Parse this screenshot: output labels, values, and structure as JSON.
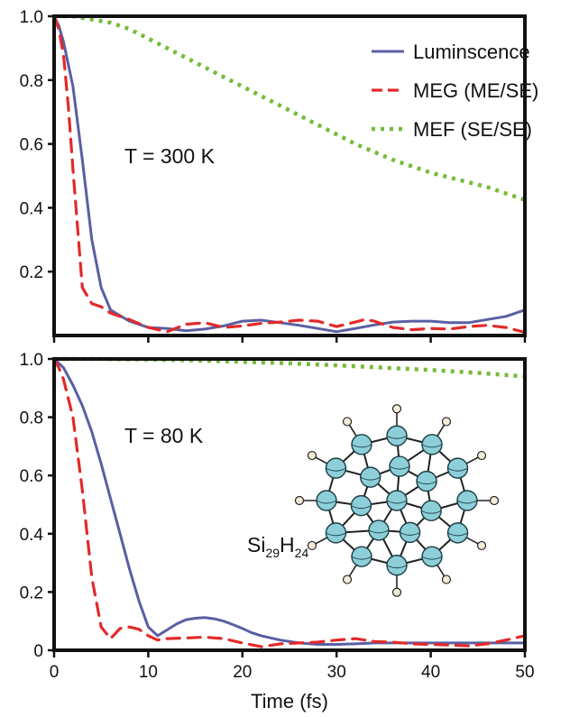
{
  "chart_data": [
    {
      "type": "line",
      "panel": "top",
      "annotation": "T = 300 K",
      "xlabel": "",
      "ylabel": "",
      "xlim": [
        0,
        50
      ],
      "ylim": [
        0,
        1.0
      ],
      "yticks": [
        "1.0",
        "0.8",
        "0.6",
        "0.4",
        "0.2"
      ],
      "ytick_values": [
        1.0,
        0.8,
        0.6,
        0.4,
        0.2
      ],
      "xtick_values": [
        0,
        10,
        20,
        30,
        40,
        50
      ],
      "legend_position": "top-right",
      "series": [
        {
          "name": "Luminscence",
          "color": "#5a5fa3",
          "style": "solid",
          "x": [
            0,
            0.5,
            1,
            2,
            3,
            4,
            5,
            6,
            8,
            10,
            12,
            14,
            16,
            18,
            20,
            22,
            24,
            26,
            28,
            30,
            32,
            34,
            36,
            38,
            40,
            42,
            44,
            46,
            48,
            50
          ],
          "y": [
            1.0,
            0.97,
            0.92,
            0.78,
            0.55,
            0.3,
            0.15,
            0.08,
            0.045,
            0.025,
            0.022,
            0.015,
            0.02,
            0.03,
            0.045,
            0.048,
            0.04,
            0.032,
            0.022,
            0.012,
            0.022,
            0.033,
            0.042,
            0.045,
            0.045,
            0.04,
            0.04,
            0.05,
            0.06,
            0.08
          ]
        },
        {
          "name": "MEG (ME/SE)",
          "color": "#e22a2a",
          "style": "dashed",
          "x": [
            0,
            0.5,
            1,
            1.5,
            2,
            3,
            4,
            5,
            6,
            8,
            10,
            12,
            14,
            16,
            18,
            20,
            22,
            24,
            26,
            28,
            30,
            32,
            33,
            34,
            36,
            38,
            40,
            42,
            44,
            46,
            48,
            50
          ],
          "y": [
            1.0,
            0.96,
            0.88,
            0.72,
            0.52,
            0.15,
            0.1,
            0.09,
            0.07,
            0.05,
            0.025,
            0.012,
            0.035,
            0.04,
            0.025,
            0.03,
            0.038,
            0.042,
            0.048,
            0.045,
            0.028,
            0.042,
            0.05,
            0.045,
            0.025,
            0.018,
            0.022,
            0.02,
            0.028,
            0.032,
            0.025,
            0.01
          ]
        },
        {
          "name": "MEF (SE/SE)",
          "color": "#77bb3a",
          "style": "dotted",
          "x": [
            0,
            2,
            4,
            6,
            8,
            10,
            12,
            14,
            16,
            18,
            20,
            22,
            24,
            26,
            28,
            30,
            32,
            34,
            36,
            38,
            40,
            42,
            44,
            46,
            48,
            50
          ],
          "y": [
            1.0,
            1.0,
            0.99,
            0.98,
            0.96,
            0.93,
            0.9,
            0.87,
            0.84,
            0.81,
            0.78,
            0.75,
            0.72,
            0.69,
            0.66,
            0.63,
            0.6,
            0.575,
            0.55,
            0.53,
            0.51,
            0.495,
            0.48,
            0.465,
            0.445,
            0.425
          ]
        }
      ]
    },
    {
      "type": "line",
      "panel": "bottom",
      "annotation": "T = 80 K",
      "molecule_label": "Si",
      "molecule_sub1": "29",
      "molecule_mid": "H",
      "molecule_sub2": "24",
      "xlabel": "Time (fs)",
      "ylabel": "",
      "xlim": [
        0,
        50
      ],
      "ylim": [
        0,
        1.0
      ],
      "yticks": [
        "1.0",
        "0.8",
        "0.6",
        "0.4",
        "0.2",
        "0"
      ],
      "ytick_values": [
        1.0,
        0.8,
        0.6,
        0.4,
        0.2,
        0
      ],
      "xticks": [
        "0",
        "10",
        "20",
        "30",
        "40",
        "50"
      ],
      "xtick_values": [
        0,
        10,
        20,
        30,
        40,
        50
      ],
      "series": [
        {
          "name": "Luminscence",
          "color": "#5a5fa3",
          "style": "solid",
          "x": [
            0,
            1,
            2,
            3,
            4,
            5,
            6,
            7,
            8,
            9,
            10,
            11,
            12,
            13,
            14,
            15,
            16,
            17,
            18,
            19,
            20,
            21,
            22,
            24,
            26,
            28,
            30,
            32,
            34,
            36,
            38,
            40,
            42,
            44,
            46,
            48,
            50
          ],
          "y": [
            1.0,
            0.97,
            0.91,
            0.84,
            0.75,
            0.64,
            0.52,
            0.4,
            0.28,
            0.17,
            0.08,
            0.05,
            0.07,
            0.09,
            0.105,
            0.11,
            0.112,
            0.108,
            0.1,
            0.088,
            0.075,
            0.06,
            0.05,
            0.035,
            0.025,
            0.02,
            0.02,
            0.022,
            0.025,
            0.025,
            0.025,
            0.025,
            0.025,
            0.025,
            0.025,
            0.025,
            0.025
          ]
        },
        {
          "name": "MEG (ME/SE)",
          "color": "#e22a2a",
          "style": "dashed",
          "x": [
            0,
            0.5,
            1,
            2,
            3,
            4,
            5,
            6,
            7,
            8,
            9,
            10,
            11,
            12,
            14,
            16,
            18,
            20,
            22,
            24,
            26,
            28,
            30,
            32,
            34,
            36,
            38,
            40,
            42,
            44,
            46,
            48,
            50
          ],
          "y": [
            1.0,
            0.97,
            0.93,
            0.8,
            0.55,
            0.25,
            0.08,
            0.04,
            0.075,
            0.08,
            0.072,
            0.05,
            0.035,
            0.04,
            0.042,
            0.045,
            0.04,
            0.025,
            0.012,
            0.022,
            0.025,
            0.028,
            0.035,
            0.04,
            0.03,
            0.028,
            0.022,
            0.02,
            0.018,
            0.015,
            0.022,
            0.035,
            0.05
          ]
        },
        {
          "name": "MEF (SE/SE)",
          "color": "#77bb3a",
          "style": "dotted",
          "x": [
            0,
            5,
            10,
            15,
            20,
            25,
            30,
            35,
            40,
            45,
            50
          ],
          "y": [
            1.0,
            1.0,
            0.998,
            0.995,
            0.99,
            0.985,
            0.978,
            0.97,
            0.962,
            0.952,
            0.94
          ]
        }
      ]
    }
  ]
}
